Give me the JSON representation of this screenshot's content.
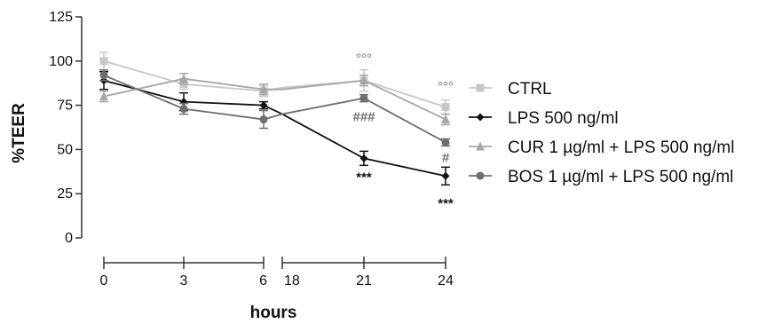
{
  "chart_data": {
    "type": "line",
    "ylabel": "%TEER",
    "xlabel": "hours",
    "ylim": [
      0,
      125
    ],
    "yticks": [
      0,
      25,
      50,
      75,
      100,
      125
    ],
    "ytick_labels": [
      "0",
      "25",
      "50",
      "75",
      "100",
      "125"
    ],
    "x_segments": [
      {
        "ticks": [
          0,
          3,
          6
        ],
        "tick_labels": [
          "0",
          "3",
          "6"
        ]
      },
      {
        "ticks": [
          18,
          21,
          24
        ],
        "tick_labels": [
          "18",
          "21",
          "24"
        ]
      }
    ],
    "legend_position": "right",
    "series": [
      {
        "name": "CTRL",
        "marker": "square",
        "color": "#c8c8c8",
        "points": [
          {
            "x": 0,
            "y": 100,
            "err": 5
          },
          {
            "x": 3,
            "y": 87,
            "err": 3
          },
          {
            "x": 6,
            "y": 83,
            "err": 3
          },
          {
            "x": 18,
            "y": 85,
            "err": 0
          },
          {
            "x": 21,
            "y": 89,
            "err": 6
          },
          {
            "x": 24,
            "y": 74,
            "err": 4
          }
        ]
      },
      {
        "name": "LPS 500 ng/ml",
        "marker": "diamond",
        "color": "#111111",
        "points": [
          {
            "x": 0,
            "y": 89,
            "err": 5
          },
          {
            "x": 3,
            "y": 77,
            "err": 5
          },
          {
            "x": 6,
            "y": 75,
            "err": 2
          },
          {
            "x": 18,
            "y": 70,
            "err": 0
          },
          {
            "x": 21,
            "y": 45,
            "err": 4
          },
          {
            "x": 24,
            "y": 35,
            "err": 5
          }
        ]
      },
      {
        "name": "CUR 1 µg/ml + LPS 500 ng/ml",
        "marker": "triangle",
        "color": "#a6a6a6",
        "points": [
          {
            "x": 0,
            "y": 80,
            "err": 3
          },
          {
            "x": 3,
            "y": 90,
            "err": 3
          },
          {
            "x": 6,
            "y": 84,
            "err": 3
          },
          {
            "x": 18,
            "y": 84,
            "err": 0
          },
          {
            "x": 21,
            "y": 89,
            "err": 3
          },
          {
            "x": 24,
            "y": 67,
            "err": 3
          }
        ]
      },
      {
        "name": "BOS 1 µg/ml + LPS 500 ng/ml",
        "marker": "circle",
        "color": "#6e6e6e",
        "points": [
          {
            "x": 0,
            "y": 92,
            "err": 3
          },
          {
            "x": 3,
            "y": 73,
            "err": 3
          },
          {
            "x": 6,
            "y": 67,
            "err": 5
          },
          {
            "x": 18,
            "y": 70,
            "err": 0
          },
          {
            "x": 21,
            "y": 79,
            "err": 2
          },
          {
            "x": 24,
            "y": 54,
            "err": 2
          }
        ]
      }
    ],
    "annotations": [
      {
        "text": "***",
        "x": 21,
        "y": 32,
        "color": "#111111"
      },
      {
        "text": "***",
        "x": 24,
        "y": 17,
        "color": "#111111"
      },
      {
        "text": "°°°",
        "x": 21,
        "y": 99,
        "color": "#9a9a9a"
      },
      {
        "text": "°°°",
        "x": 24,
        "y": 83,
        "color": "#9a9a9a"
      },
      {
        "text": "###",
        "x": 21,
        "y": 66,
        "color": "#6e6e6e"
      },
      {
        "text": "#",
        "x": 24,
        "y": 43,
        "color": "#6e6e6e"
      }
    ]
  }
}
